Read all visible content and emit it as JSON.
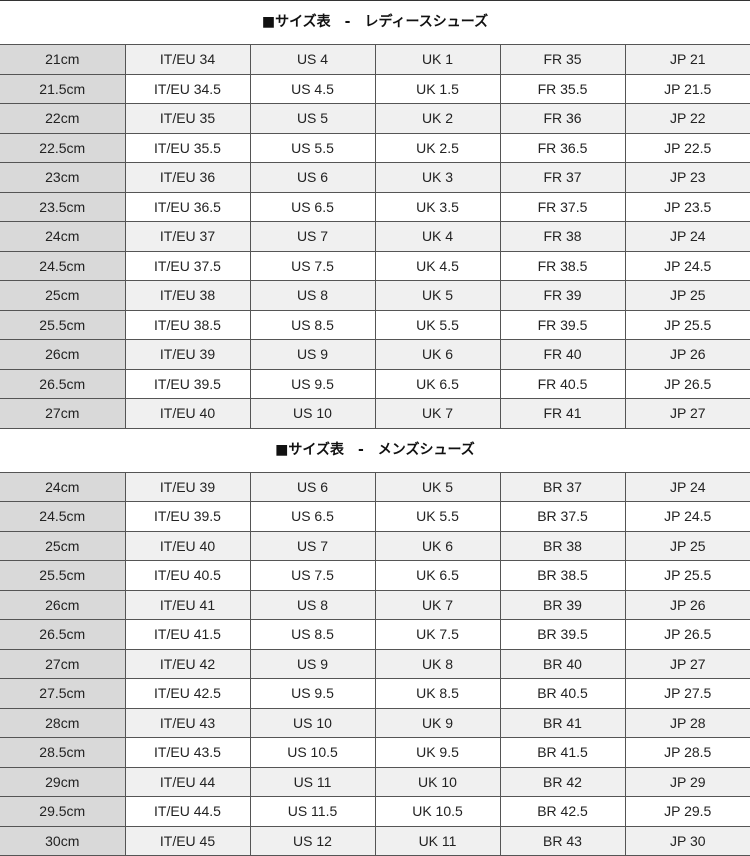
{
  "sections": [
    {
      "title": "■サイズ表　-　レディースシューズ",
      "rows": [
        [
          "21cm",
          "IT/EU 34",
          "US 4",
          "UK 1",
          "FR 35",
          "JP 21"
        ],
        [
          "21.5cm",
          "IT/EU 34.5",
          "US 4.5",
          "UK 1.5",
          "FR 35.5",
          "JP 21.5"
        ],
        [
          "22cm",
          "IT/EU 35",
          "US 5",
          "UK 2",
          "FR 36",
          "JP 22"
        ],
        [
          "22.5cm",
          "IT/EU 35.5",
          "US 5.5",
          "UK 2.5",
          "FR 36.5",
          "JP 22.5"
        ],
        [
          "23cm",
          "IT/EU 36",
          "US 6",
          "UK 3",
          "FR 37",
          "JP 23"
        ],
        [
          "23.5cm",
          "IT/EU 36.5",
          "US 6.5",
          "UK 3.5",
          "FR 37.5",
          "JP 23.5"
        ],
        [
          "24cm",
          "IT/EU 37",
          "US 7",
          "UK 4",
          "FR 38",
          "JP 24"
        ],
        [
          "24.5cm",
          "IT/EU 37.5",
          "US 7.5",
          "UK 4.5",
          "FR 38.5",
          "JP 24.5"
        ],
        [
          "25cm",
          "IT/EU 38",
          "US 8",
          "UK 5",
          "FR 39",
          "JP 25"
        ],
        [
          "25.5cm",
          "IT/EU 38.5",
          "US 8.5",
          "UK 5.5",
          "FR 39.5",
          "JP 25.5"
        ],
        [
          "26cm",
          "IT/EU 39",
          "US 9",
          "UK 6",
          "FR 40",
          "JP 26"
        ],
        [
          "26.5cm",
          "IT/EU 39.5",
          "US 9.5",
          "UK 6.5",
          "FR 40.5",
          "JP 26.5"
        ],
        [
          "27cm",
          "IT/EU 40",
          "US 10",
          "UK 7",
          "FR 41",
          "JP 27"
        ]
      ]
    },
    {
      "title": "■サイズ表　-　メンズシューズ",
      "rows": [
        [
          "24cm",
          "IT/EU 39",
          "US 6",
          "UK 5",
          "BR 37",
          "JP 24"
        ],
        [
          "24.5cm",
          "IT/EU 39.5",
          "US 6.5",
          "UK 5.5",
          "BR 37.5",
          "JP 24.5"
        ],
        [
          "25cm",
          "IT/EU 40",
          "US 7",
          "UK 6",
          "BR 38",
          "JP 25"
        ],
        [
          "25.5cm",
          "IT/EU 40.5",
          "US 7.5",
          "UK 6.5",
          "BR 38.5",
          "JP 25.5"
        ],
        [
          "26cm",
          "IT/EU 41",
          "US 8",
          "UK 7",
          "BR 39",
          "JP 26"
        ],
        [
          "26.5cm",
          "IT/EU 41.5",
          "US 8.5",
          "UK 7.5",
          "BR 39.5",
          "JP 26.5"
        ],
        [
          "27cm",
          "IT/EU 42",
          "US 9",
          "UK 8",
          "BR 40",
          "JP 27"
        ],
        [
          "27.5cm",
          "IT/EU 42.5",
          "US 9.5",
          "UK 8.5",
          "BR 40.5",
          "JP 27.5"
        ],
        [
          "28cm",
          "IT/EU 43",
          "US 10",
          "UK 9",
          "BR 41",
          "JP 28"
        ],
        [
          "28.5cm",
          "IT/EU 43.5",
          "US 10.5",
          "UK 9.5",
          "BR 41.5",
          "JP 28.5"
        ],
        [
          "29cm",
          "IT/EU 44",
          "US 11",
          "UK 10",
          "BR 42",
          "JP 29"
        ],
        [
          "29.5cm",
          "IT/EU 44.5",
          "US 11.5",
          "UK 10.5",
          "BR 42.5",
          "JP 29.5"
        ],
        [
          "30cm",
          "IT/EU 45",
          "US 12",
          "UK 11",
          "BR 43",
          "JP 30"
        ]
      ]
    }
  ]
}
